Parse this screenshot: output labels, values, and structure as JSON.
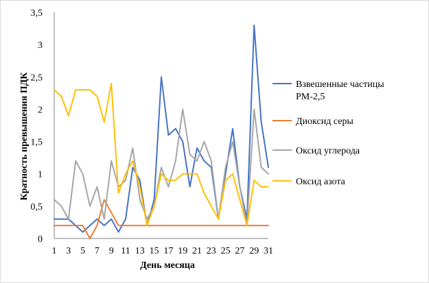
{
  "chart_data": {
    "type": "line",
    "title": "",
    "xlabel": "День месяца",
    "ylabel": "Кратность превышения ПДК",
    "x": [
      1,
      2,
      3,
      4,
      5,
      6,
      7,
      8,
      9,
      10,
      11,
      12,
      13,
      14,
      15,
      16,
      17,
      18,
      19,
      20,
      21,
      22,
      23,
      24,
      25,
      26,
      27,
      28,
      29,
      30,
      31
    ],
    "x_tick_labels": [
      "1",
      "3",
      "5",
      "7",
      "9",
      "11",
      "13",
      "15",
      "17",
      "19",
      "21",
      "23",
      "25",
      "27",
      "29",
      "31"
    ],
    "y_tick_labels": [
      "0",
      "0,5",
      "1",
      "1,5",
      "2",
      "2,5",
      "3",
      "3,5"
    ],
    "ylim": [
      0,
      3.5
    ],
    "y_step": 0.5,
    "grid": false,
    "legend_position": "right",
    "series": [
      {
        "name": "Взвешенные частицы РМ-2,5",
        "name_lines": [
          "Взвешенные частицы",
          "РМ-2,5"
        ],
        "color": "#4472c4",
        "values": [
          0.3,
          0.3,
          0.3,
          0.2,
          0.1,
          0.2,
          0.3,
          0.2,
          0.3,
          0.1,
          0.3,
          1.1,
          0.9,
          0.2,
          0.6,
          2.5,
          1.6,
          1.7,
          1.5,
          0.8,
          1.4,
          1.2,
          1.1,
          0.3,
          1.0,
          1.7,
          0.8,
          0.3,
          3.3,
          1.8,
          1.1
        ]
      },
      {
        "name": "Диоксид серы",
        "name_lines": [
          "Диоксид серы"
        ],
        "color": "#ed7d31",
        "values": [
          0.2,
          0.2,
          0.2,
          0.2,
          0.2,
          0.0,
          0.2,
          0.6,
          0.4,
          0.2,
          0.2,
          0.2,
          0.2,
          0.2,
          0.2,
          0.2,
          0.2,
          0.2,
          0.2,
          0.2,
          0.2,
          0.2,
          0.2,
          0.2,
          0.2,
          0.2,
          0.2,
          0.2,
          0.2,
          0.2,
          0.2
        ]
      },
      {
        "name": "Оксид углерода",
        "name_lines": [
          "Оксид углерода"
        ],
        "color": "#a5a5a5",
        "values": [
          0.6,
          0.5,
          0.3,
          1.2,
          1.0,
          0.5,
          0.8,
          0.3,
          1.2,
          0.8,
          0.9,
          1.4,
          0.6,
          0.3,
          0.5,
          1.1,
          0.8,
          1.2,
          2.0,
          1.3,
          1.2,
          1.5,
          1.2,
          0.3,
          1.1,
          1.5,
          0.8,
          0.2,
          2.0,
          1.1,
          1.0
        ]
      },
      {
        "name": "Оксид азота",
        "name_lines": [
          "Оксид азота"
        ],
        "color": "#ffc000",
        "values": [
          2.3,
          2.2,
          1.9,
          2.3,
          2.3,
          2.3,
          2.2,
          1.8,
          2.4,
          0.7,
          1.0,
          1.2,
          0.8,
          0.2,
          0.5,
          1.0,
          0.9,
          0.9,
          1.0,
          1.0,
          1.0,
          0.7,
          0.5,
          0.3,
          0.9,
          1.0,
          0.6,
          0.2,
          0.9,
          0.8,
          0.8
        ]
      }
    ]
  }
}
